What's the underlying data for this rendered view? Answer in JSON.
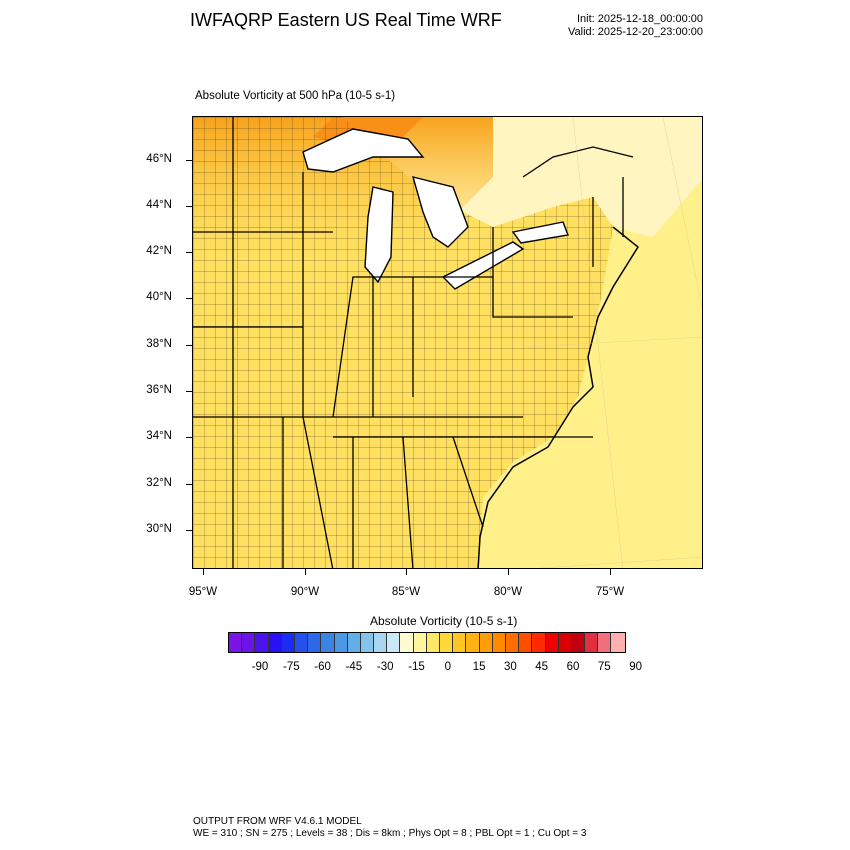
{
  "header": {
    "title": "IWFAQRP Eastern US Real Time WRF",
    "init": "Init: 2025-12-18_00:00:00",
    "valid": "Valid: 2025-12-20_23:00:00"
  },
  "map": {
    "subtitle": "Absolute Vorticity at 500 hPa   (10-5 s-1)",
    "lat_labels": [
      "46°N",
      "44°N",
      "42°N",
      "40°N",
      "38°N",
      "36°N",
      "34°N",
      "32°N",
      "30°N"
    ],
    "lon_labels": [
      "95°W",
      "90°W",
      "85°W",
      "80°W",
      "75°W"
    ],
    "colors": {
      "ocean": "#fff08a",
      "land_fill": "#ffe060",
      "north_fill": "#fbb92e",
      "strong": "#f88a14",
      "lake": "#b8e0f4"
    }
  },
  "colorbar": {
    "title": "Absolute Vorticity  (10-5 s-1)",
    "labels": [
      "-90",
      "-75",
      "-60",
      "-45",
      "-30",
      "-15",
      "0",
      "15",
      "30",
      "45",
      "60",
      "75",
      "90"
    ],
    "colors": [
      "#7b14e6",
      "#6a14e8",
      "#4a12ee",
      "#2a10f4",
      "#1d2cf2",
      "#2450ec",
      "#2d68e6",
      "#3a84e4",
      "#4b98e6",
      "#62aee8",
      "#84c4ec",
      "#a6d6f0",
      "#cae8f6",
      "#fffbd0",
      "#fff4a0",
      "#ffe866",
      "#ffd83c",
      "#ffc628",
      "#ffb214",
      "#ff9e0a",
      "#ff8a00",
      "#ff6e00",
      "#ff4e00",
      "#ff2a00",
      "#f00000",
      "#d80000",
      "#c00010",
      "#e03040",
      "#f07080",
      "#ffb0b0"
    ]
  },
  "footer": {
    "line1": "OUTPUT FROM WRF V4.6.1 MODEL",
    "line2": "WE = 310 ; SN = 275 ; Levels = 38 ; Dis = 8km ; Phys Opt = 8 ; PBL Opt = 1 ; Cu Opt = 3"
  }
}
